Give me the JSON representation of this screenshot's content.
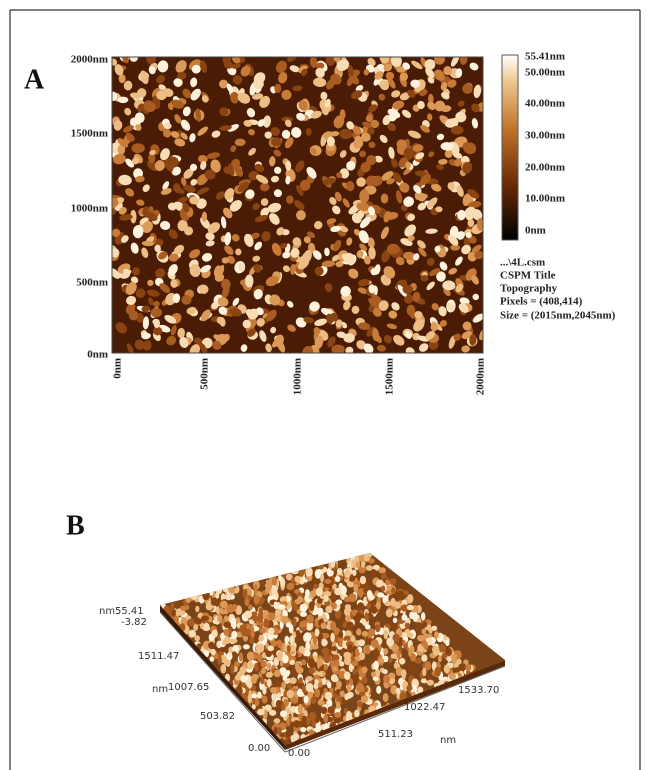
{
  "panel_a": {
    "label": "A",
    "y_ticks": [
      "2000nm",
      "1500nm",
      "1000nm",
      "500nm",
      "0nm"
    ],
    "x_ticks": [
      "0nm",
      "500nm",
      "1000nm",
      "1500nm",
      "2000nm"
    ],
    "colorbar_ticks": [
      "55.41nm",
      "50.00nm",
      "40.00nm",
      "30.00nm",
      "20.00nm",
      "10.00nm",
      "0nm"
    ],
    "info": [
      "...\\4L.csm",
      "CSPM Title",
      "Topography",
      "Pixels = (408,414)",
      "Size = (2015nm,2045nm)"
    ]
  },
  "panel_b": {
    "label": "B",
    "z_unit": "nm",
    "z_max": "55.41",
    "z_min": "-3.82",
    "y_unit": "nm",
    "y_ticks": [
      "0.00",
      "503.82",
      "1007.65",
      "1511.47"
    ],
    "x_ticks": [
      "0.00",
      "511.23",
      "1022.47",
      "1533.70"
    ],
    "x_unit": "nm"
  }
}
